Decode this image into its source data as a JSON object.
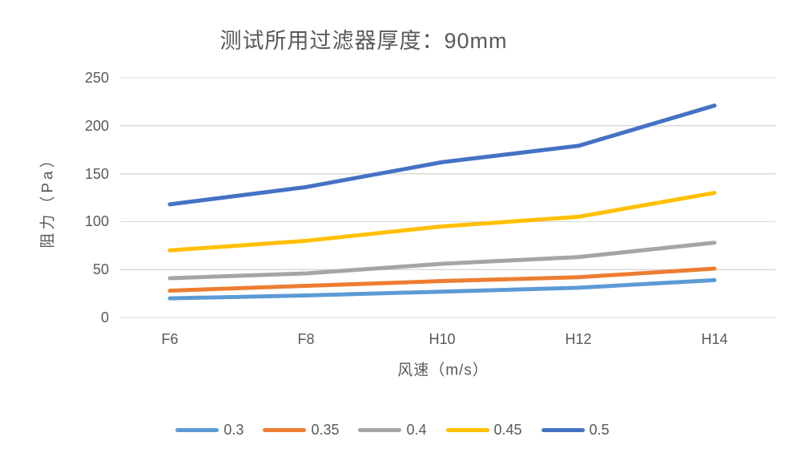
{
  "chart_data": {
    "type": "line",
    "title": "测试所用过滤器厚度：90mm",
    "xlabel": "风速（m/s）",
    "ylabel": "阻力（Pa）",
    "categories": [
      "F6",
      "F8",
      "H10",
      "H12",
      "H14"
    ],
    "series": [
      {
        "name": "0.3",
        "color": "#5B9BD5",
        "values": [
          20,
          23,
          27,
          31,
          39
        ]
      },
      {
        "name": "0.35",
        "color": "#ED7D31",
        "values": [
          28,
          33,
          38,
          42,
          51
        ]
      },
      {
        "name": "0.4",
        "color": "#A5A5A5",
        "values": [
          41,
          46,
          56,
          63,
          78
        ]
      },
      {
        "name": "0.45",
        "color": "#FFC000",
        "values": [
          70,
          80,
          95,
          105,
          130
        ]
      },
      {
        "name": "0.5",
        "color": "#4472C4",
        "values": [
          118,
          136,
          162,
          179,
          221
        ]
      }
    ],
    "y_ticks": [
      0,
      50,
      100,
      150,
      200,
      250
    ],
    "ylim": [
      0,
      250
    ],
    "grid": "horizontal-only",
    "legend_position": "bottom",
    "colors": {
      "text": "#595959",
      "gridline": "#D9D9D9",
      "background": "#FFFFFF"
    }
  }
}
